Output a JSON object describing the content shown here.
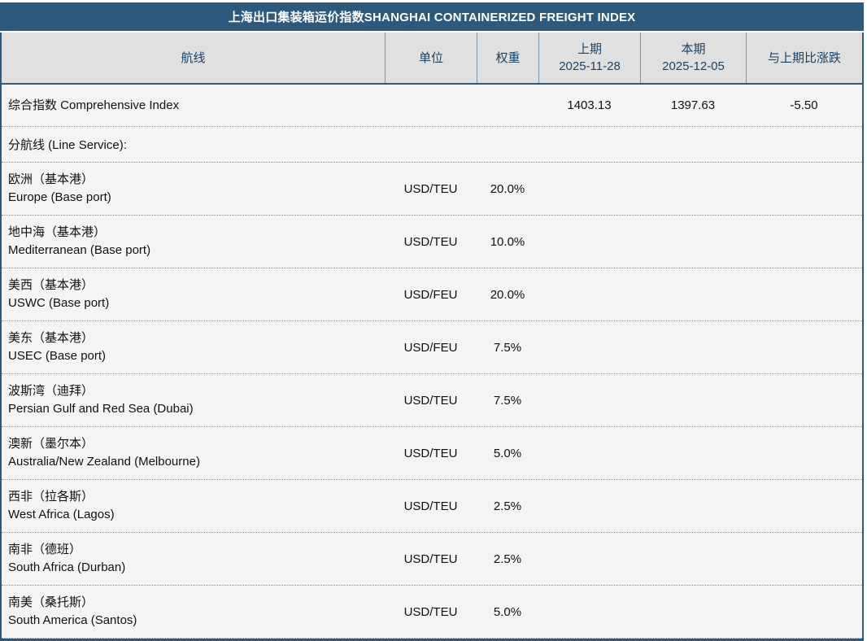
{
  "title": "上海出口集装箱运价指数SHANGHAI CONTAINERIZED FREIGHT INDEX",
  "colors": {
    "title_bar_bg": "#2d5a7c",
    "title_text": "#ffffff",
    "header_bg": "#e0e0e0",
    "header_text": "#1d4263",
    "body_bg": "#f4f4f4",
    "body_text": "#111111",
    "separator": "#7b94a9"
  },
  "table": {
    "columns": [
      {
        "key": "route",
        "label": "航线"
      },
      {
        "key": "unit",
        "label": "单位"
      },
      {
        "key": "weight",
        "label": "权重"
      },
      {
        "key": "previous",
        "label": "上期",
        "sub": "2025-11-28"
      },
      {
        "key": "current",
        "label": "本期",
        "sub": "2025-12-05"
      },
      {
        "key": "change",
        "label": "与上期比涨跌"
      }
    ],
    "rows": [
      {
        "type": "index",
        "name_zh": "综合指数",
        "name_en": "Comprehensive Index",
        "unit": "",
        "weight": "",
        "previous": "1403.13",
        "current": "1397.63",
        "change": "-5.50"
      },
      {
        "type": "section",
        "label": "分航线 (Line Service):"
      },
      {
        "type": "route",
        "name_zh": "欧洲（基本港）",
        "name_en": "Europe (Base port)",
        "unit": "USD/TEU",
        "weight": "20.0%",
        "previous": "",
        "current": "",
        "change": ""
      },
      {
        "type": "route",
        "name_zh": "地中海（基本港）",
        "name_en": "Mediterranean (Base port)",
        "unit": "USD/TEU",
        "weight": "10.0%",
        "previous": "",
        "current": "",
        "change": ""
      },
      {
        "type": "route",
        "name_zh": "美西（基本港）",
        "name_en": "USWC (Base port)",
        "unit": "USD/FEU",
        "weight": "20.0%",
        "previous": "",
        "current": "",
        "change": ""
      },
      {
        "type": "route",
        "name_zh": "美东（基本港）",
        "name_en": "USEC (Base port)",
        "unit": "USD/FEU",
        "weight": "7.5%",
        "previous": "",
        "current": "",
        "change": ""
      },
      {
        "type": "route",
        "name_zh": "波斯湾（迪拜）",
        "name_en": "Persian Gulf and Red Sea (Dubai)",
        "unit": "USD/TEU",
        "weight": "7.5%",
        "previous": "",
        "current": "",
        "change": ""
      },
      {
        "type": "route",
        "name_zh": "澳新（墨尔本）",
        "name_en": "Australia/New Zealand (Melbourne)",
        "unit": "USD/TEU",
        "weight": "5.0%",
        "previous": "",
        "current": "",
        "change": ""
      },
      {
        "type": "route",
        "name_zh": "西非（拉各斯）",
        "name_en": "West Africa (Lagos)",
        "unit": "USD/TEU",
        "weight": "2.5%",
        "previous": "",
        "current": "",
        "change": ""
      },
      {
        "type": "route",
        "name_zh": "南非（德班）",
        "name_en": "South Africa (Durban)",
        "unit": "USD/TEU",
        "weight": "2.5%",
        "previous": "",
        "current": "",
        "change": ""
      },
      {
        "type": "route",
        "name_zh": "南美（桑托斯）",
        "name_en": "South America (Santos)",
        "unit": "USD/TEU",
        "weight": "5.0%",
        "previous": "",
        "current": "",
        "change": ""
      }
    ]
  }
}
